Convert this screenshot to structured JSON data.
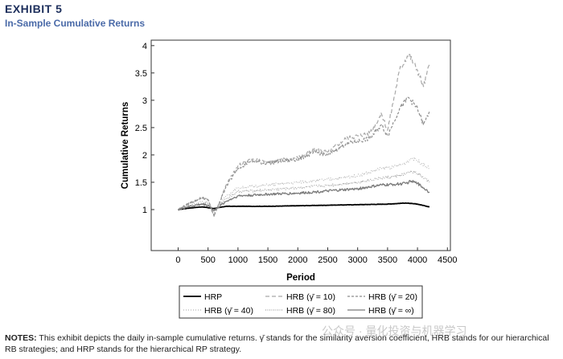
{
  "header": {
    "exhibit": "EXHIBIT 5",
    "subtitle": "In-Sample Cumulative Returns"
  },
  "notes": {
    "label": "NOTES:",
    "text": "This exhibit depicts the daily in-sample cumulative returns. γ̄ stands for the similarity aversion coefficient, HRB stands for our hierarchical RB strategies; and HRP stands for the hierarchical RP strategy."
  },
  "watermark": "公众号 · 量化投资与机器学习",
  "chart_data": {
    "type": "line",
    "xlabel": "Period",
    "ylabel": "Cumulative Returns",
    "xlim": [
      -450,
      4550
    ],
    "ylim": [
      0.25,
      4.1
    ],
    "xticks": [
      0,
      500,
      1000,
      1500,
      2000,
      2500,
      3000,
      3500,
      4000,
      4500
    ],
    "yticks": [
      1,
      1.5,
      2,
      2.5,
      3,
      3.5,
      4
    ],
    "ytick_labels": [
      "1",
      "1.5",
      "2",
      "2.5",
      "3",
      "3.5",
      "4"
    ],
    "grid": false,
    "legend_position": "bottom-center",
    "series": [
      {
        "name": "HRP",
        "color": "#000000",
        "width": 1.8,
        "dash": "",
        "x": [
          0,
          200,
          400,
          600,
          800,
          1000,
          1500,
          2000,
          2500,
          3000,
          3500,
          3800,
          4000,
          4200
        ],
        "y": [
          1.0,
          1.03,
          1.05,
          1.02,
          1.06,
          1.06,
          1.06,
          1.07,
          1.08,
          1.09,
          1.1,
          1.12,
          1.1,
          1.05
        ]
      },
      {
        "name": "HRB (γ̄ = 10)",
        "color": "#a8a8a8",
        "width": 1.2,
        "dash": "5,3",
        "x": [
          0,
          200,
          400,
          500,
          600,
          800,
          1000,
          1200,
          1500,
          2000,
          2300,
          2500,
          2800,
          3000,
          3200,
          3400,
          3500,
          3700,
          3850,
          4000,
          4100,
          4200
        ],
        "y": [
          1.0,
          1.12,
          1.22,
          1.18,
          0.88,
          1.45,
          1.8,
          1.92,
          1.88,
          1.95,
          2.1,
          2.05,
          2.3,
          2.35,
          2.4,
          2.75,
          2.45,
          3.55,
          3.85,
          3.55,
          3.25,
          3.65
        ]
      },
      {
        "name": "HRB (γ̄ = 20)",
        "color": "#8e8e8e",
        "width": 1.2,
        "dash": "3,2",
        "x": [
          0,
          200,
          400,
          500,
          600,
          800,
          1000,
          1200,
          1500,
          2000,
          2300,
          2500,
          2800,
          3000,
          3200,
          3400,
          3500,
          3700,
          3850,
          4000,
          4100,
          4200
        ],
        "y": [
          1.0,
          1.12,
          1.22,
          1.18,
          0.88,
          1.42,
          1.75,
          1.88,
          1.85,
          1.92,
          2.05,
          2.0,
          2.2,
          2.25,
          2.3,
          2.55,
          2.35,
          2.85,
          3.05,
          2.85,
          2.55,
          2.8
        ]
      },
      {
        "name": "HRB (γ̄ = 40)",
        "color": "#b4b4b4",
        "width": 1.1,
        "dash": "1,2",
        "x": [
          0,
          200,
          400,
          500,
          600,
          800,
          1000,
          1500,
          2000,
          2500,
          3000,
          3400,
          3600,
          3800,
          3900,
          4000,
          4200
        ],
        "y": [
          1.0,
          1.08,
          1.15,
          1.12,
          0.95,
          1.25,
          1.4,
          1.45,
          1.5,
          1.55,
          1.62,
          1.75,
          1.78,
          1.85,
          1.95,
          1.9,
          1.75
        ]
      },
      {
        "name": "HRB (γ̄ = 80)",
        "color": "#a0a0a0",
        "width": 1.1,
        "dash": "1,1.5",
        "x": [
          0,
          200,
          400,
          500,
          600,
          800,
          1000,
          1500,
          2000,
          2500,
          3000,
          3400,
          3600,
          3800,
          3900,
          4000,
          4200
        ],
        "y": [
          1.0,
          1.07,
          1.12,
          1.1,
          0.97,
          1.2,
          1.33,
          1.36,
          1.4,
          1.44,
          1.5,
          1.58,
          1.6,
          1.65,
          1.7,
          1.66,
          1.5
        ]
      },
      {
        "name": "HRB (γ̄ = ∞)",
        "color": "#7a7a7a",
        "width": 1.3,
        "dash": "",
        "x": [
          0,
          200,
          400,
          500,
          600,
          800,
          1000,
          1500,
          2000,
          2500,
          3000,
          3400,
          3600,
          3800,
          3900,
          4000,
          4200
        ],
        "y": [
          1.0,
          1.06,
          1.1,
          1.08,
          0.98,
          1.15,
          1.25,
          1.28,
          1.3,
          1.34,
          1.38,
          1.45,
          1.46,
          1.48,
          1.52,
          1.48,
          1.32
        ]
      }
    ]
  }
}
